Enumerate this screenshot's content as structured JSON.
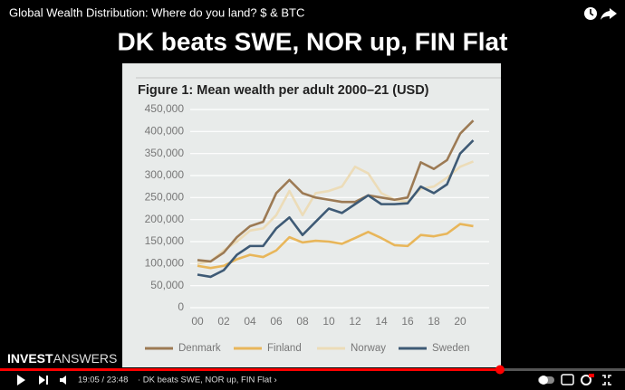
{
  "video_title": "Global Wealth Distribution: Where do you land? $ & BTC",
  "overlay_heading": "DK beats SWE, NOR up, FIN Flat",
  "logo": {
    "bold": "INVEST",
    "light": "ANSWERS"
  },
  "player": {
    "time": "19:05 / 23:48",
    "chapter_label": "· DK beats SWE, NOR up, FIN Flat ›"
  },
  "chart_data": {
    "type": "line",
    "title": "Figure 1: Mean wealth per adult 2000–21 (USD)",
    "categories": [
      "00",
      null,
      "02",
      null,
      "04",
      null,
      "06",
      null,
      "08",
      null,
      "10",
      null,
      "12",
      null,
      "14",
      null,
      "16",
      null,
      "18",
      null,
      "20",
      null
    ],
    "series": [
      {
        "name": "Denmark",
        "color": "#9c7a54",
        "values": [
          108000,
          105000,
          125000,
          160000,
          185000,
          195000,
          260000,
          290000,
          260000,
          250000,
          245000,
          240000,
          240000,
          255000,
          250000,
          245000,
          250000,
          330000,
          315000,
          335000,
          395000,
          425000
        ]
      },
      {
        "name": "Finland",
        "color": "#e8b65a",
        "values": [
          95000,
          90000,
          95000,
          110000,
          120000,
          115000,
          130000,
          160000,
          148000,
          152000,
          150000,
          145000,
          158000,
          172000,
          158000,
          142000,
          140000,
          165000,
          162000,
          168000,
          190000,
          185000
        ]
      },
      {
        "name": "Norway",
        "color": "#ecdcb8",
        "values": [
          100000,
          105000,
          130000,
          150000,
          175000,
          180000,
          210000,
          265000,
          210000,
          260000,
          265000,
          275000,
          320000,
          305000,
          260000,
          245000,
          240000,
          270000,
          275000,
          295000,
          320000,
          332000
        ]
      },
      {
        "name": "Sweden",
        "color": "#3e5a75",
        "values": [
          75000,
          70000,
          85000,
          120000,
          140000,
          140000,
          180000,
          205000,
          165000,
          195000,
          225000,
          215000,
          235000,
          255000,
          235000,
          235000,
          237000,
          275000,
          260000,
          280000,
          350000,
          380000
        ]
      }
    ],
    "ylim": [
      0,
      450000
    ],
    "yticks": [
      0,
      {
        "value": 50000,
        "label": "50,000"
      },
      {
        "value": 100000,
        "label": "100,000"
      },
      {
        "value": 150000,
        "label": "150,000"
      },
      {
        "value": 200000,
        "label": "200,000"
      },
      {
        "value": 250000,
        "label": "250,000"
      },
      {
        "value": 300000,
        "label": "300,000"
      },
      {
        "value": 350000,
        "label": "350,000"
      },
      {
        "value": 400000,
        "label": "400,000"
      },
      {
        "value": 450000,
        "label": "450,000"
      }
    ],
    "grid": true
  }
}
